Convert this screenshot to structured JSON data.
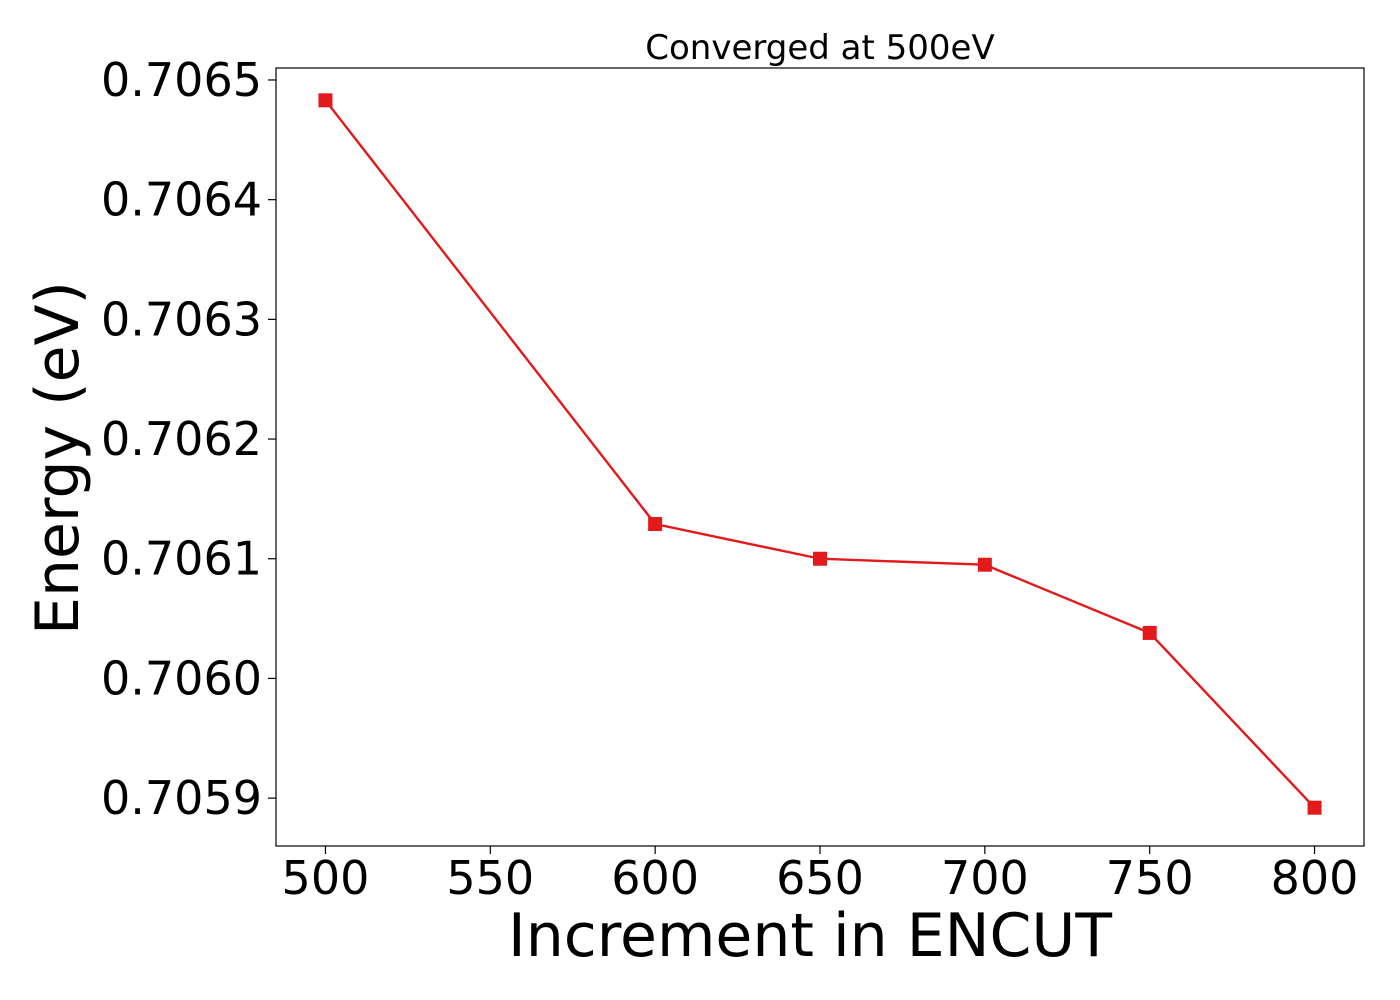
{
  "chart_data": {
    "type": "line",
    "title": "Converged at 500eV",
    "xlabel": "Increment in ENCUT",
    "ylabel": "Energy (eV)",
    "xlim": [
      485,
      815
    ],
    "ylim": [
      0.70586,
      0.70651
    ],
    "xticks": [
      500,
      550,
      600,
      650,
      700,
      750,
      800
    ],
    "xtick_labels": [
      "500",
      "550",
      "600",
      "650",
      "700",
      "750",
      "800"
    ],
    "yticks": [
      0.7059,
      0.706,
      0.7061,
      0.7062,
      0.7063,
      0.7064,
      0.7065
    ],
    "ytick_labels": [
      "0.7059",
      "0.7060",
      "0.7061",
      "0.7062",
      "0.7063",
      "0.7064",
      "0.7065"
    ],
    "grid": false,
    "series": [
      {
        "color": "#e31a1c",
        "marker": "square",
        "x": [
          500,
          600,
          650,
          700,
          750,
          800
        ],
        "y": [
          0.706483,
          0.706129,
          0.7061,
          0.706095,
          0.706038,
          0.705892
        ]
      }
    ]
  }
}
